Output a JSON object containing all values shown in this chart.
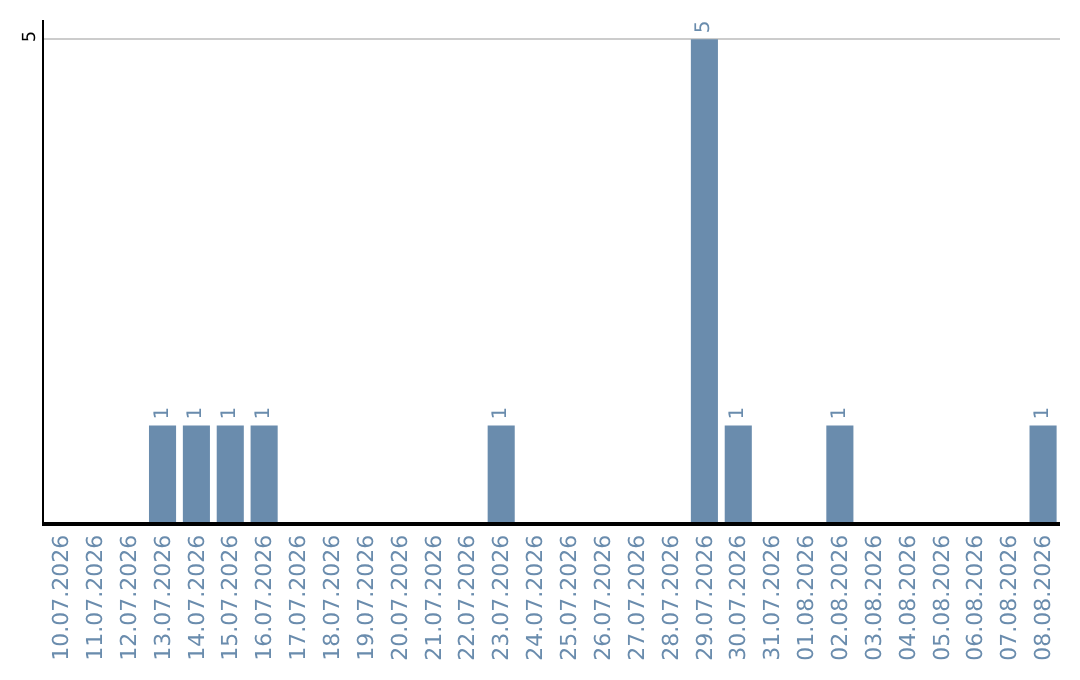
{
  "chart_data": {
    "type": "bar",
    "categories": [
      "10.07.2026",
      "11.07.2026",
      "12.07.2026",
      "13.07.2026",
      "14.07.2026",
      "15.07.2026",
      "16.07.2026",
      "17.07.2026",
      "18.07.2026",
      "19.07.2026",
      "20.07.2026",
      "21.07.2026",
      "22.07.2026",
      "23.07.2026",
      "24.07.2026",
      "25.07.2026",
      "26.07.2026",
      "27.07.2026",
      "28.07.2026",
      "29.07.2026",
      "30.07.2026",
      "31.07.2026",
      "01.08.2026",
      "02.08.2026",
      "03.08.2026",
      "04.08.2026",
      "05.08.2026",
      "06.08.2026",
      "07.08.2026",
      "08.08.2026"
    ],
    "values": [
      0,
      0,
      0,
      1,
      1,
      1,
      1,
      0,
      0,
      0,
      0,
      0,
      0,
      1,
      0,
      0,
      0,
      0,
      0,
      5,
      1,
      0,
      0,
      1,
      0,
      0,
      0,
      0,
      0,
      1
    ],
    "value_labels": [
      null,
      null,
      null,
      "1",
      "1",
      "1",
      "1",
      null,
      null,
      null,
      null,
      null,
      null,
      "1",
      null,
      null,
      null,
      null,
      null,
      "5",
      "1",
      null,
      null,
      "1",
      null,
      null,
      null,
      null,
      null,
      "1"
    ],
    "color": "#6a8cad",
    "ylim": [
      0,
      5.2
    ],
    "yticks": [
      5
    ],
    "grid": "y"
  }
}
